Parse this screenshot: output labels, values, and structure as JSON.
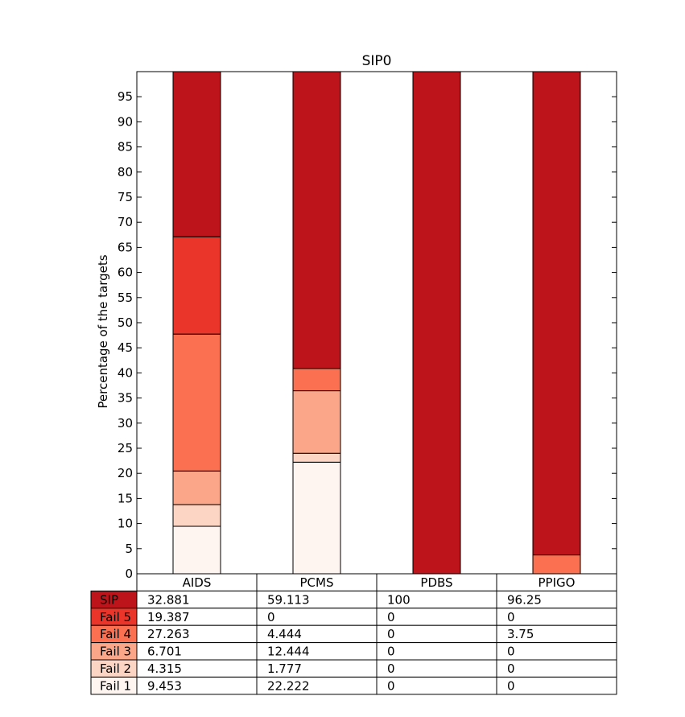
{
  "chart_data": {
    "type": "bar",
    "stacked": true,
    "title": "SIP0",
    "xlabel": "",
    "ylabel": "Percentage of the targets",
    "ylim": [
      0,
      100
    ],
    "yticks": [
      0,
      5,
      10,
      15,
      20,
      25,
      30,
      35,
      40,
      45,
      50,
      55,
      60,
      65,
      70,
      75,
      80,
      85,
      90,
      95
    ],
    "grid": false,
    "categories": [
      "AIDS",
      "PCMS",
      "PDBS",
      "PPIGO"
    ],
    "series": [
      {
        "name": "Fail 1",
        "color": "#fff5f0",
        "values": [
          9.453,
          22.222,
          0,
          0
        ],
        "labels": [
          "9.453",
          "22.222",
          "0",
          "0"
        ]
      },
      {
        "name": "Fail 2",
        "color": "#fdd5c4",
        "values": [
          4.315,
          1.777,
          0,
          0
        ],
        "labels": [
          "4.315",
          "1.777",
          "0",
          "0"
        ]
      },
      {
        "name": "Fail 3",
        "color": "#fca689",
        "values": [
          6.701,
          12.444,
          0,
          0
        ],
        "labels": [
          "6.701",
          "12.444",
          "0",
          "0"
        ]
      },
      {
        "name": "Fail 4",
        "color": "#fb7050",
        "values": [
          27.263,
          4.444,
          0,
          3.75
        ],
        "labels": [
          "27.263",
          "4.444",
          "0",
          "3.75"
        ]
      },
      {
        "name": "Fail 5",
        "color": "#ea362a",
        "values": [
          19.387,
          0,
          0,
          0
        ],
        "labels": [
          "19.387",
          "0",
          "0",
          "0"
        ]
      },
      {
        "name": "SIP",
        "color": "#bc141a",
        "values": [
          32.881,
          59.113,
          100,
          96.25
        ],
        "labels": [
          "32.881",
          "59.113",
          "100",
          "96.25"
        ]
      }
    ],
    "table_row_order": [
      "SIP",
      "Fail 5",
      "Fail 4",
      "Fail 3",
      "Fail 2",
      "Fail 1"
    ]
  }
}
